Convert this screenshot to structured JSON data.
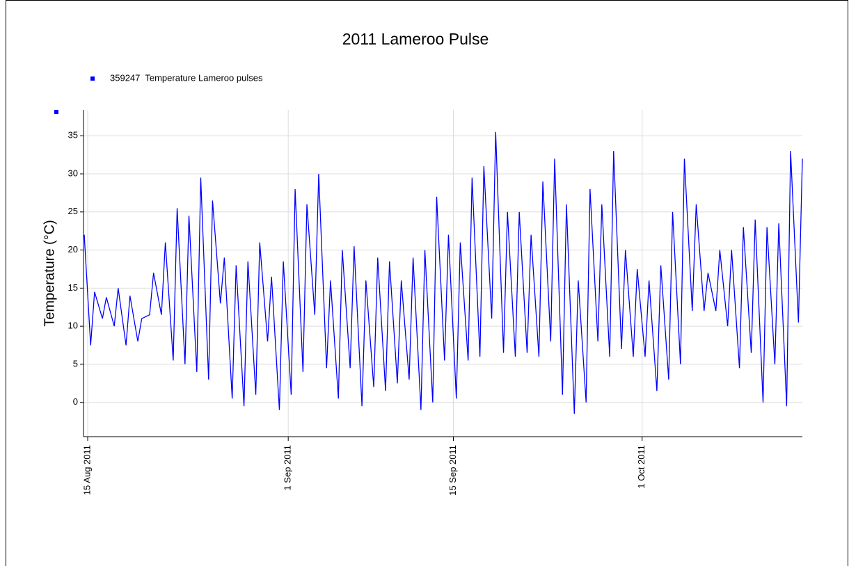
{
  "chart_data": {
    "type": "line",
    "title": "2011 Lameroo Pulse",
    "y_label": "Temperature (°C)",
    "x": [
      "2011-08-14T17:00",
      "2011-08-15T06:00",
      "2011-08-15T14:00",
      "2011-08-16T06:00",
      "2011-08-16T14:00",
      "2011-08-17T06:00",
      "2011-08-17T14:00",
      "2011-08-18T06:00",
      "2011-08-18T14:00",
      "2011-08-19T06:00",
      "2011-08-19T14:00",
      "2011-08-20T06:00",
      "2011-08-20T14:00",
      "2011-08-21T06:00",
      "2011-08-21T14:00",
      "2011-08-22T06:00",
      "2011-08-22T14:00",
      "2011-08-23T06:00",
      "2011-08-23T14:00",
      "2011-08-24T06:00",
      "2011-08-24T14:00",
      "2011-08-25T06:00",
      "2011-08-25T14:00",
      "2011-08-26T06:00",
      "2011-08-26T14:00",
      "2011-08-27T06:00",
      "2011-08-27T14:00",
      "2011-08-28T06:00",
      "2011-08-28T14:00",
      "2011-08-29T06:00",
      "2011-08-29T14:00",
      "2011-08-30T06:00",
      "2011-08-30T14:00",
      "2011-08-31T06:00",
      "2011-08-31T14:00",
      "2011-09-01T06:00",
      "2011-09-01T14:00",
      "2011-09-02T06:00",
      "2011-09-02T14:00",
      "2011-09-03T06:00",
      "2011-09-03T14:00",
      "2011-09-04T06:00",
      "2011-09-04T14:00",
      "2011-09-05T06:00",
      "2011-09-05T14:00",
      "2011-09-06T06:00",
      "2011-09-06T14:00",
      "2011-09-07T06:00",
      "2011-09-07T14:00",
      "2011-09-08T06:00",
      "2011-09-08T14:00",
      "2011-09-09T06:00",
      "2011-09-09T14:00",
      "2011-09-10T06:00",
      "2011-09-10T14:00",
      "2011-09-11T06:00",
      "2011-09-11T14:00",
      "2011-09-12T06:00",
      "2011-09-12T14:00",
      "2011-09-13T06:00",
      "2011-09-13T14:00",
      "2011-09-14T06:00",
      "2011-09-14T14:00",
      "2011-09-15T06:00",
      "2011-09-15T14:00",
      "2011-09-16T06:00",
      "2011-09-16T14:00",
      "2011-09-17T06:00",
      "2011-09-17T14:00",
      "2011-09-18T06:00",
      "2011-09-18T14:00",
      "2011-09-19T06:00",
      "2011-09-19T14:00",
      "2011-09-20T06:00",
      "2011-09-20T14:00",
      "2011-09-21T06:00",
      "2011-09-21T14:00",
      "2011-09-22T06:00",
      "2011-09-22T14:00",
      "2011-09-23T06:00",
      "2011-09-23T14:00",
      "2011-09-24T06:00",
      "2011-09-24T14:00",
      "2011-09-25T06:00",
      "2011-09-25T14:00",
      "2011-09-26T06:00",
      "2011-09-26T14:00",
      "2011-09-27T06:00",
      "2011-09-27T14:00",
      "2011-09-28T06:00",
      "2011-09-28T14:00",
      "2011-09-29T06:00",
      "2011-09-29T14:00",
      "2011-09-30T06:00",
      "2011-09-30T14:00",
      "2011-10-01T06:00",
      "2011-10-01T14:00",
      "2011-10-02T06:00",
      "2011-10-02T14:00",
      "2011-10-03T06:00",
      "2011-10-03T14:00",
      "2011-10-04T06:00",
      "2011-10-04T14:00",
      "2011-10-05T06:00",
      "2011-10-05T14:00",
      "2011-10-06T06:00",
      "2011-10-06T14:00",
      "2011-10-07T06:00",
      "2011-10-07T14:00",
      "2011-10-08T06:00",
      "2011-10-08T14:00",
      "2011-10-09T06:00",
      "2011-10-09T14:00",
      "2011-10-10T06:00",
      "2011-10-10T14:00",
      "2011-10-11T06:00",
      "2011-10-11T14:00",
      "2011-10-12T06:00",
      "2011-10-12T14:00",
      "2011-10-13T06:00",
      "2011-10-13T14:00",
      "2011-10-14T06:00",
      "2011-10-14T14:00"
    ],
    "series": [
      {
        "name": "359247  Temperature Lameroo pulses",
        "color": "#0000ff",
        "values": [
          22,
          7.5,
          14.5,
          11,
          13.8,
          10,
          15,
          7.5,
          14,
          8,
          11,
          11.5,
          17,
          11.5,
          21,
          5.5,
          25.5,
          5,
          24.5,
          4,
          29.5,
          3,
          26.5,
          13,
          19,
          0.5,
          18,
          -0.5,
          18.5,
          1,
          21,
          8,
          16.5,
          -1,
          18.5,
          1,
          28,
          4,
          26,
          11.5,
          30,
          4.5,
          16,
          0.5,
          20,
          4.5,
          20.5,
          -0.5,
          16,
          2,
          19,
          1.5,
          18.5,
          2.5,
          16,
          3,
          19,
          -1,
          20,
          0,
          27,
          5.5,
          22,
          0.5,
          21,
          5.5,
          29.5,
          6,
          31,
          11,
          35.5,
          6.5,
          25,
          6,
          25,
          6.5,
          22,
          6,
          29,
          8,
          32,
          1,
          26,
          -1.5,
          16,
          0,
          28,
          8,
          26,
          6,
          33,
          7,
          20,
          6,
          17.5,
          6,
          16,
          1.5,
          18,
          3,
          25,
          5,
          32,
          12,
          26,
          12,
          17,
          12,
          20,
          10,
          20,
          4.5,
          23,
          6.5,
          24,
          0,
          23,
          5,
          23.5,
          -0.5,
          33,
          10.5,
          32
        ]
      }
    ],
    "xlim": [
      "2011-08-14T15:30",
      "2011-10-14T14:00"
    ],
    "xticks": [
      {
        "value": "2011-08-15T00:00",
        "label": "15 Aug 2011"
      },
      {
        "value": "2011-09-01T00:00",
        "label": "1 Sep 2011"
      },
      {
        "value": "2011-09-15T00:00",
        "label": "15 Sep 2011"
      },
      {
        "value": "2011-10-01T00:00",
        "label": "1 Oct 2011"
      }
    ],
    "ylim": [
      -4.5,
      38.4
    ],
    "yticks": [
      0,
      5,
      10,
      15,
      20,
      25,
      30,
      35
    ],
    "grid": true
  }
}
